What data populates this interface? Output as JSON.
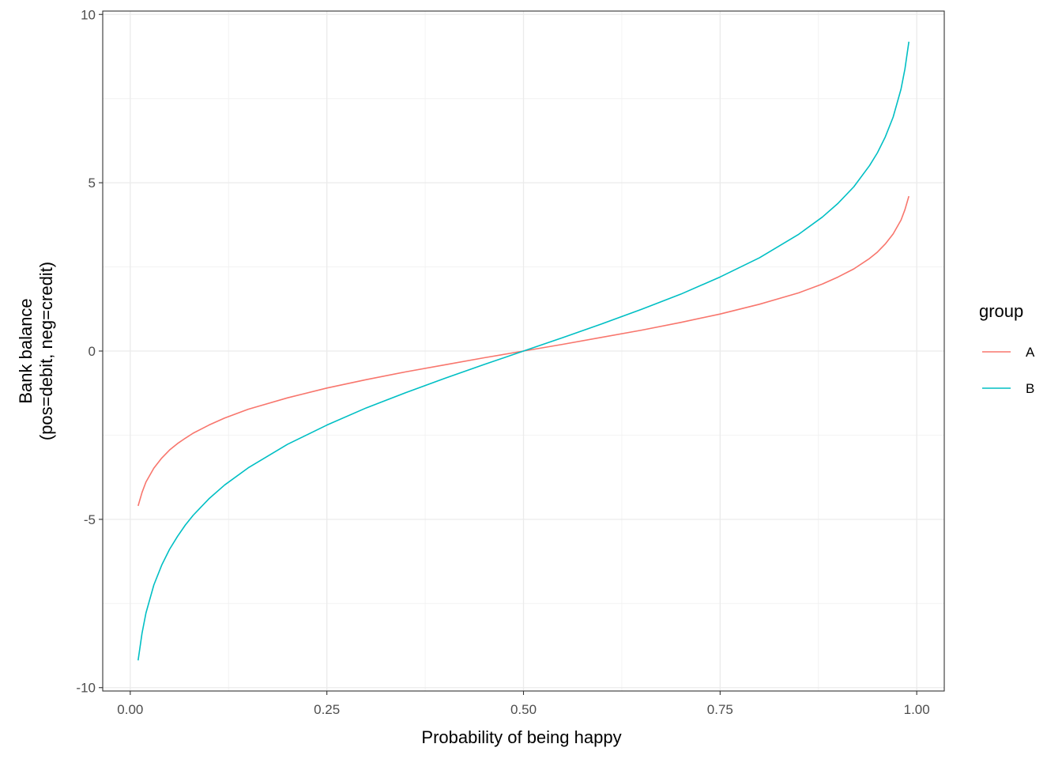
{
  "chart_data": {
    "type": "line",
    "title": "",
    "xlabel": "Probability of being happy",
    "ylabel_lines": [
      "Bank balance",
      "(pos=debit, neg=credit)"
    ],
    "xlim": [
      -0.035,
      1.035
    ],
    "ylim": [
      -10.1,
      10.1
    ],
    "x_ticks": [
      0,
      0.25,
      0.5,
      0.75,
      1
    ],
    "x_tick_labels": [
      "0.00",
      "0.25",
      "0.50",
      "0.75",
      "1.00"
    ],
    "y_ticks": [
      -10,
      -5,
      0,
      5,
      10
    ],
    "y_tick_labels": [
      "-10",
      "-5",
      "0",
      "5",
      "10"
    ],
    "grid": true,
    "legend": {
      "title": "group",
      "position": "right"
    },
    "series": [
      {
        "name": "A",
        "color": "#F8766D",
        "x": [
          0.01,
          0.015,
          0.02,
          0.03,
          0.04,
          0.05,
          0.06,
          0.07,
          0.08,
          0.1,
          0.12,
          0.15,
          0.2,
          0.25,
          0.3,
          0.35,
          0.4,
          0.45,
          0.5,
          0.55,
          0.6,
          0.65,
          0.7,
          0.75,
          0.8,
          0.85,
          0.88,
          0.9,
          0.92,
          0.94,
          0.95,
          0.96,
          0.97,
          0.98,
          0.985,
          0.99
        ],
        "y": [
          -4.6,
          -4.2,
          -3.89,
          -3.48,
          -3.18,
          -2.94,
          -2.75,
          -2.59,
          -2.44,
          -2.2,
          -1.99,
          -1.73,
          -1.39,
          -1.1,
          -0.85,
          -0.62,
          -0.41,
          -0.2,
          0.0,
          0.2,
          0.41,
          0.62,
          0.85,
          1.1,
          1.39,
          1.73,
          1.99,
          2.2,
          2.44,
          2.75,
          2.94,
          3.18,
          3.48,
          3.89,
          4.2,
          4.6
        ]
      },
      {
        "name": "B",
        "color": "#00BFC4",
        "x": [
          0.01,
          0.015,
          0.02,
          0.03,
          0.04,
          0.05,
          0.06,
          0.07,
          0.08,
          0.1,
          0.12,
          0.15,
          0.2,
          0.25,
          0.3,
          0.35,
          0.4,
          0.45,
          0.5,
          0.55,
          0.6,
          0.65,
          0.7,
          0.75,
          0.8,
          0.85,
          0.88,
          0.9,
          0.92,
          0.94,
          0.95,
          0.96,
          0.97,
          0.98,
          0.985,
          0.99
        ],
        "y": [
          -9.19,
          -8.38,
          -7.78,
          -6.95,
          -6.36,
          -5.89,
          -5.51,
          -5.17,
          -4.88,
          -4.39,
          -3.98,
          -3.47,
          -2.77,
          -2.2,
          -1.69,
          -1.24,
          -0.81,
          -0.4,
          0.0,
          0.4,
          0.81,
          1.24,
          1.69,
          2.2,
          2.77,
          3.47,
          3.98,
          4.39,
          4.88,
          5.51,
          5.89,
          6.36,
          6.95,
          7.78,
          8.38,
          9.19
        ]
      }
    ]
  }
}
